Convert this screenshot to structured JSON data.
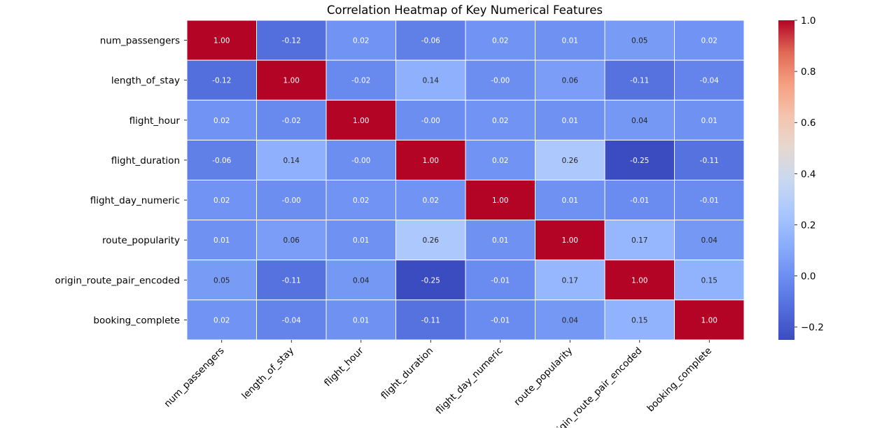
{
  "chart_data": {
    "type": "heatmap",
    "title": "Correlation Heatmap of Key Numerical Features",
    "xlabel": "",
    "ylabel": "",
    "variables": [
      "num_passengers",
      "length_of_stay",
      "flight_hour",
      "flight_duration",
      "flight_day_numeric",
      "route_popularity",
      "origin_route_pair_encoded",
      "booking_complete"
    ],
    "matrix": [
      [
        1.0,
        -0.12,
        0.02,
        -0.06,
        0.02,
        0.01,
        0.05,
        0.02
      ],
      [
        -0.12,
        1.0,
        -0.02,
        0.14,
        -0.0,
        0.06,
        -0.11,
        -0.04
      ],
      [
        0.02,
        -0.02,
        1.0,
        -0.0,
        0.02,
        0.01,
        0.04,
        0.01
      ],
      [
        -0.06,
        0.14,
        -0.0,
        1.0,
        0.02,
        0.26,
        -0.25,
        -0.11
      ],
      [
        0.02,
        -0.0,
        0.02,
        0.02,
        1.0,
        0.01,
        -0.01,
        -0.01
      ],
      [
        0.01,
        0.06,
        0.01,
        0.26,
        0.01,
        1.0,
        0.17,
        0.04
      ],
      [
        0.05,
        -0.11,
        0.04,
        -0.25,
        -0.01,
        0.17,
        1.0,
        0.15
      ],
      [
        0.02,
        -0.04,
        0.01,
        -0.11,
        -0.01,
        0.04,
        0.15,
        1.0
      ]
    ],
    "value_format": "2 decimals",
    "colormap": "coolwarm",
    "colorbar": {
      "min": -0.25,
      "max": 1.0,
      "ticks": [
        -0.2,
        0.0,
        0.2,
        0.4,
        0.6,
        0.8,
        1.0
      ],
      "tick_labels": [
        "−0.2",
        "0.0",
        "0.2",
        "0.4",
        "0.6",
        "0.8",
        "1.0"
      ]
    },
    "cell_separator_color": "#ffffff",
    "legend": "colorbar-right"
  }
}
